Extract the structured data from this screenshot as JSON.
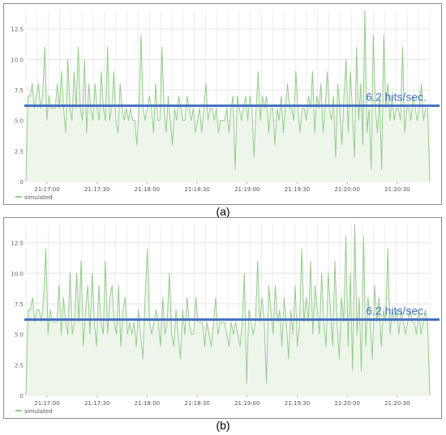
{
  "chart_data": [
    {
      "type": "area",
      "panel": "a",
      "caption": "(a)",
      "legend": "simulated",
      "legend_position": "bottom-left",
      "grid": true,
      "ylim": [
        0,
        14
      ],
      "yticks": [
        "0",
        "2.5",
        "5.0",
        "7.5",
        "10.0",
        "12.5"
      ],
      "ytick_values": [
        0,
        2.5,
        5.0,
        7.5,
        10.0,
        12.5
      ],
      "xticks": [
        "21:17:00",
        "21:17:30",
        "21:18:00",
        "21:18:30",
        "21:19:00",
        "21:19:30",
        "21:20:00",
        "21:20:30"
      ],
      "threshold": {
        "value": 6.2,
        "label": "6.2 hits/sec."
      },
      "series": [
        {
          "name": "simulated",
          "values": [
            0,
            7,
            7,
            8,
            6,
            7,
            8,
            6,
            7,
            11,
            5,
            7,
            6,
            6,
            6,
            8,
            6,
            9,
            6,
            4,
            10,
            6,
            5,
            9,
            6,
            11,
            6,
            5,
            10,
            4,
            8,
            6,
            5,
            8,
            6,
            5,
            9,
            6,
            5,
            11,
            5,
            6,
            9,
            5,
            4,
            8,
            6,
            5,
            6,
            5,
            6,
            5,
            5,
            3,
            6,
            12,
            6,
            5,
            6,
            7,
            6,
            4,
            8,
            5,
            5,
            11,
            6,
            4,
            7,
            5,
            3,
            6,
            5,
            7,
            6,
            5,
            5,
            7,
            6,
            5,
            6,
            4,
            5,
            6,
            4,
            6,
            8,
            5,
            6,
            6,
            5,
            6,
            4,
            5,
            5,
            5,
            6,
            4,
            6,
            7,
            1,
            7,
            6,
            5,
            6,
            7,
            5,
            7,
            6,
            2,
            6,
            9,
            5,
            7,
            6,
            7,
            4,
            6,
            6,
            3,
            6,
            5,
            7,
            4,
            6,
            8,
            6,
            6,
            5,
            9,
            6,
            4,
            6,
            6,
            5,
            7,
            6,
            9,
            4,
            7,
            6,
            8,
            4,
            6,
            9,
            6,
            5,
            7,
            2,
            8,
            6,
            3,
            7,
            10,
            4,
            9,
            6,
            2,
            11,
            5,
            8,
            3,
            14,
            4,
            6,
            1,
            12,
            6,
            4,
            7,
            1,
            12,
            6,
            8,
            5,
            7,
            5,
            6,
            6,
            5,
            11,
            4,
            6,
            6,
            5,
            7,
            6,
            5,
            6,
            8,
            5,
            6,
            6,
            0
          ]
        }
      ]
    },
    {
      "type": "area",
      "panel": "b",
      "caption": "(b)",
      "legend": "simulated",
      "legend_position": "bottom-left",
      "grid": true,
      "ylim": [
        0,
        14
      ],
      "yticks": [
        "0",
        "2.5",
        "5.0",
        "7.5",
        "10.0",
        "12.5"
      ],
      "ytick_values": [
        0,
        2.5,
        5.0,
        7.5,
        10.0,
        12.5
      ],
      "xticks": [
        "21:17:00",
        "21:17:30",
        "21:18:00",
        "21:18:30",
        "21:19:00",
        "21:19:30",
        "21:20:00",
        "21:20:30"
      ],
      "threshold": {
        "value": 6.2,
        "label": "6.2 hits/sec."
      },
      "series": [
        {
          "name": "simulated",
          "values": [
            0,
            7,
            7,
            8,
            6,
            7,
            7,
            6,
            8,
            12,
            5,
            7,
            6,
            6,
            6,
            9,
            5,
            8,
            6,
            5,
            10,
            5,
            6,
            10,
            6,
            11,
            4,
            7,
            9,
            5,
            10,
            6,
            4,
            9,
            6,
            5,
            11,
            5,
            8,
            9,
            6,
            5,
            9,
            4,
            7,
            8,
            5,
            6,
            5,
            6,
            4,
            7,
            5,
            3,
            8,
            12,
            6,
            5,
            6,
            7,
            6,
            4,
            8,
            5,
            6,
            10,
            5,
            4,
            7,
            5,
            3,
            7,
            5,
            8,
            6,
            5,
            5,
            8,
            6,
            6,
            6,
            4,
            6,
            5,
            4,
            6,
            8,
            5,
            6,
            6,
            6,
            5,
            4,
            6,
            5,
            6,
            5,
            4,
            6,
            10,
            1,
            7,
            6,
            5,
            6,
            11,
            6,
            8,
            6,
            1,
            9,
            7,
            5,
            9,
            6,
            7,
            4,
            8,
            6,
            3,
            7,
            5,
            9,
            4,
            6,
            12,
            6,
            8,
            6,
            11,
            5,
            9,
            7,
            5,
            10,
            6,
            4,
            10,
            7,
            4,
            11,
            6,
            3,
            8,
            6,
            13,
            4,
            10,
            2,
            14,
            5,
            8,
            2,
            13,
            4,
            8,
            6,
            3,
            9,
            6,
            8,
            4,
            7,
            6,
            12,
            5,
            7,
            6,
            7,
            5,
            7,
            6,
            5,
            6,
            7,
            6,
            6,
            5,
            7,
            5,
            6,
            7,
            6,
            0
          ]
        }
      ]
    }
  ],
  "captions": {
    "a": "(a)",
    "b": "(b)"
  }
}
